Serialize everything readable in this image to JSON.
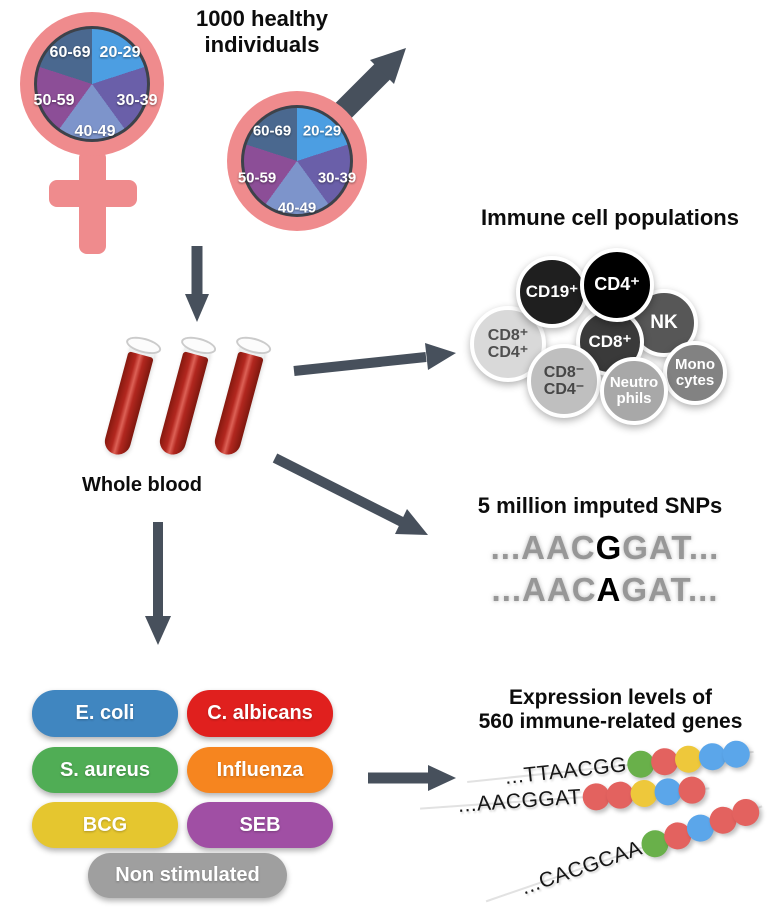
{
  "header": {
    "title_line1": "1000 healthy",
    "title_line2": "individuals"
  },
  "demographics": {
    "symbol_color": "#ef8b8d",
    "age_groups": [
      {
        "label": "20-29",
        "color": "#4c9ee2"
      },
      {
        "label": "30-39",
        "color": "#6a5fa9"
      },
      {
        "label": "40-49",
        "color": "#7d94cb"
      },
      {
        "label": "50-59",
        "color": "#8c4e97"
      },
      {
        "label": "60-69",
        "color": "#4a688f"
      }
    ]
  },
  "whole_blood": {
    "label": "Whole blood",
    "tube_count": 3,
    "blood_color": "#b2271f"
  },
  "immune_cells": {
    "heading": "Immune cell populations",
    "cells": [
      {
        "line1": "CD8⁺",
        "line2": "CD4⁺",
        "color": "#d9d9d9"
      },
      {
        "line1": "CD19⁺",
        "color": "#1f1f1f"
      },
      {
        "line1": "NK",
        "color": "#575757"
      },
      {
        "line1": "CD8⁺",
        "color": "#3a3a3a"
      },
      {
        "line1": "CD4⁺",
        "color": "#000000"
      },
      {
        "line1": "Mono",
        "line2": "cytes",
        "color": "#828282"
      },
      {
        "line1": "CD8⁻",
        "line2": "CD4⁻",
        "color": "#bfbfbf"
      },
      {
        "line1": "Neutro",
        "line2": "phils",
        "color": "#a8a8a8"
      }
    ]
  },
  "snps": {
    "heading": "5 million imputed SNPs",
    "sequences": [
      {
        "pre": "...AAC",
        "variant": "G",
        "post": "GAT..."
      },
      {
        "pre": "...AAC",
        "variant": "A",
        "post": "GAT..."
      }
    ]
  },
  "stimuli": {
    "items": [
      {
        "label": "E. coli",
        "color": "#4086c0"
      },
      {
        "label": "C. albicans",
        "color": "#e0201e"
      },
      {
        "label": "S. aureus",
        "color": "#50ad55"
      },
      {
        "label": "Influenza",
        "color": "#f6851f"
      },
      {
        "label": "BCG",
        "color": "#e5c62f"
      },
      {
        "label": "SEB",
        "color": "#a04fa4"
      },
      {
        "label": "Non stimulated",
        "color": "#9f9f9f"
      }
    ]
  },
  "expression": {
    "heading_line1": "Expression levels of",
    "heading_line2": "560 immune-related genes",
    "dot_colors": {
      "green": "#69b04a",
      "red": "#e3625f",
      "yellow": "#eec83b",
      "blue": "#5ba6ea"
    },
    "strands": [
      {
        "sequence": "...TTAACGG",
        "dots": [
          "green",
          "red",
          "yellow",
          "blue",
          "blue"
        ]
      },
      {
        "sequence": "...AACGGAT",
        "dots": [
          "red",
          "red",
          "yellow",
          "blue",
          "red"
        ]
      },
      {
        "sequence": "...CACGCAA",
        "dots": [
          "green",
          "red",
          "blue",
          "red",
          "red"
        ]
      }
    ]
  },
  "arrow_color": "#47505c"
}
